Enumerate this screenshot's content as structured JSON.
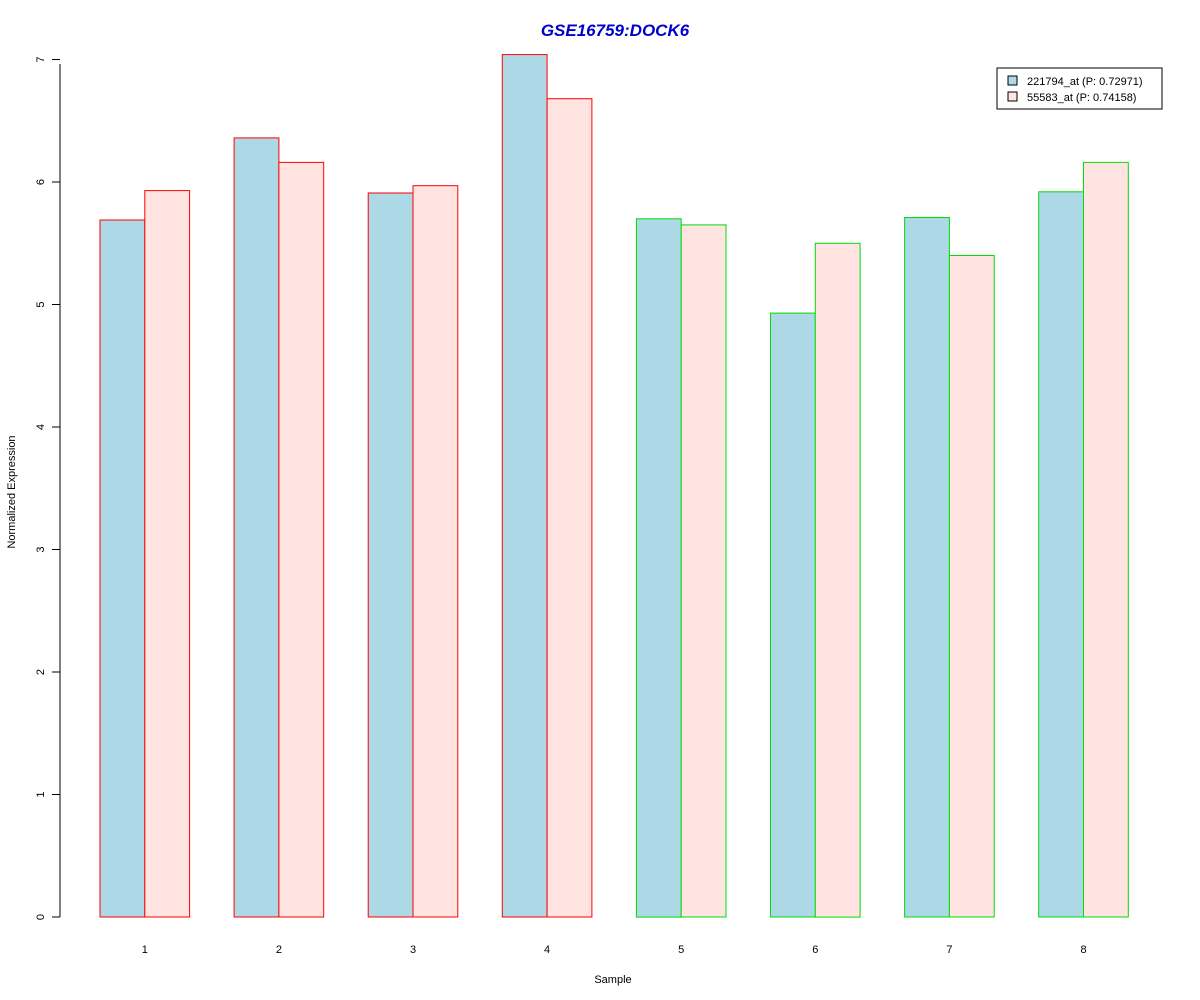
{
  "chart_data": {
    "type": "bar",
    "title": "GSE16759:DOCK6",
    "xlabel": "Sample",
    "ylabel": "Normalized Expression",
    "categories": [
      "1",
      "2",
      "3",
      "4",
      "5",
      "6",
      "7",
      "8"
    ],
    "y_ticks": [
      "0",
      "1",
      "2",
      "3",
      "4",
      "5",
      "6",
      "7"
    ],
    "ylim": [
      0,
      7
    ],
    "series": [
      {
        "name": "221794_at (P: 0.72971)",
        "fill": "#add8e6",
        "values": [
          5.69,
          6.36,
          5.91,
          7.04,
          5.7,
          4.93,
          5.71,
          5.92
        ]
      },
      {
        "name": "55583_at (P: 0.74158)",
        "fill": "#ffe4e1",
        "values": [
          5.93,
          6.16,
          5.97,
          6.68,
          5.65,
          5.5,
          5.4,
          6.16
        ]
      }
    ],
    "group_border_colors": [
      "#ff0000",
      "#ff0000",
      "#ff0000",
      "#ff0000",
      "#00dd00",
      "#00dd00",
      "#00dd00",
      "#00dd00"
    ],
    "title_color": "#0000cd",
    "legend_position": "top-right",
    "grid": false
  }
}
